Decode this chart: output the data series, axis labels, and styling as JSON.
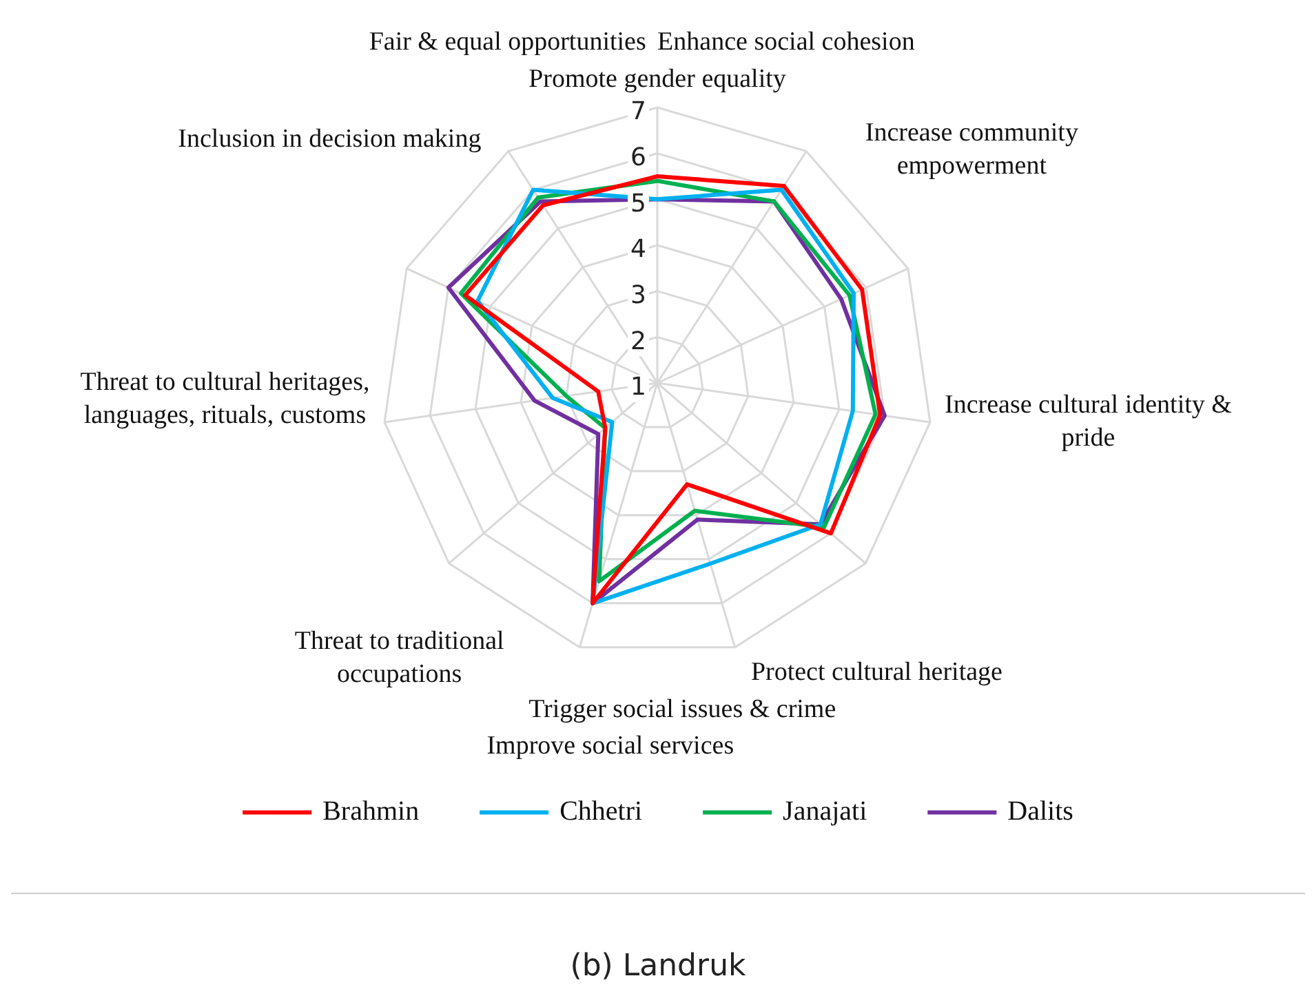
{
  "chart_data": {
    "type": "radar",
    "categories": [
      "Promote gender equality",
      "Enhance social cohesion",
      "Increase community empowerment",
      "Increase cultural identity & pride",
      "Protect cultural heritage",
      "Trigger social issues & crime",
      "Improve social services",
      "Threat to traditional occupations",
      "Threat to cultural heritages, languages, rituals, customs",
      "Inclusion in decision making",
      "Fair & equal opportunities"
    ],
    "series": [
      {
        "name": "Brahmin",
        "color": "#ff0000",
        "values": [
          5.5,
          6.1,
          5.9,
          5.9,
          6.0,
          3.3,
          6.0,
          2.5,
          2.3,
          5.6,
          5.6
        ]
      },
      {
        "name": "Chhetri",
        "color": "#00b0f0",
        "values": [
          5.0,
          6.0,
          5.7,
          5.3,
          5.7,
          5.1,
          6.0,
          2.3,
          3.3,
          5.3,
          6.0
        ]
      },
      {
        "name": "Janajati",
        "color": "#00b050",
        "values": [
          5.4,
          5.7,
          5.6,
          5.8,
          5.8,
          3.9,
          5.5,
          2.5,
          3.0,
          5.7,
          5.8
        ]
      },
      {
        "name": "Dalits",
        "color": "#7030a0",
        "values": [
          5.0,
          5.7,
          5.4,
          6.0,
          5.7,
          4.1,
          6.0,
          2.7,
          3.7,
          6.0,
          5.7
        ]
      }
    ],
    "ylim": [
      1,
      7
    ],
    "yticks": [
      1,
      2,
      3,
      4,
      5,
      6,
      7
    ],
    "grid": true,
    "legend": "bottom",
    "marker": "none",
    "line_style": "solid",
    "annotations": [
      "(b) Landruk"
    ]
  }
}
